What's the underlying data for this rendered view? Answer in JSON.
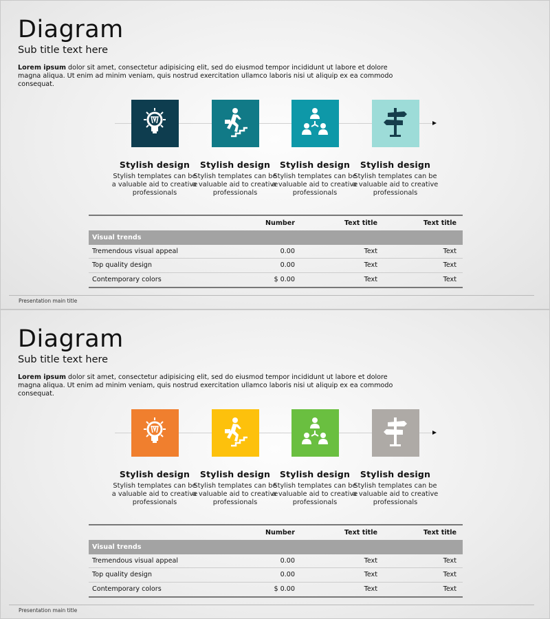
{
  "slides": [
    {
      "title": "Diagram",
      "subtitle": "Sub title text here",
      "body_bold": "Lorem ipsum",
      "body_text": " dolor sit amet, consectetur adipisicing elit, sed do eiusmod tempor incididunt ut labore et dolore magna aliqua. Ut enim ad minim veniam, quis nostrud exercitation ullamco laboris nisi ut aliquip ex ea commodo consequat.",
      "steps": [
        {
          "icon": "lightbulb-icon",
          "color": "#0e3d4f",
          "icon_color": "#ffffff",
          "heading": "Stylish design",
          "text": "Stylish templates can be a valuable aid to creative professionals"
        },
        {
          "icon": "running-up-stairs-icon",
          "color": "#117a87",
          "icon_color": "#ffffff",
          "heading": "Stylish design",
          "text": "Stylish templates can be a valuable aid to creative professionals"
        },
        {
          "icon": "team-hierarchy-icon",
          "color": "#0e98a8",
          "icon_color": "#ffffff",
          "heading": "Stylish design",
          "text": "Stylish templates can be a valuable aid to creative professionals"
        },
        {
          "icon": "signpost-icon",
          "color": "#9ddcd8",
          "icon_color": "#163e4c",
          "heading": "Stylish design",
          "text": "Stylish templates can be a valuable aid to creative professionals"
        }
      ],
      "table": {
        "headers": [
          "",
          "Number",
          "Text title",
          "Text title"
        ],
        "group": "Visual trends",
        "rows": [
          [
            "Tremendous visual appeal",
            "0.00",
            "Text",
            "Text"
          ],
          [
            "Top quality design",
            "0.00",
            "Text",
            "Text"
          ],
          [
            "Contemporary colors",
            "$ 0.00",
            "Text",
            "Text"
          ]
        ]
      },
      "footer": "Presentation main title"
    },
    {
      "title": "Diagram",
      "subtitle": "Sub title text here",
      "body_bold": "Lorem ipsum",
      "body_text": " dolor sit amet, consectetur adipisicing elit, sed do eiusmod tempor incididunt ut labore et dolore magna aliqua. Ut enim ad minim veniam, quis nostrud exercitation ullamco laboris nisi ut aliquip ex ea commodo consequat.",
      "steps": [
        {
          "icon": "lightbulb-icon",
          "color": "#f07f2e",
          "icon_color": "#ffffff",
          "heading": "Stylish design",
          "text": "Stylish templates can be a valuable aid to creative professionals"
        },
        {
          "icon": "running-up-stairs-icon",
          "color": "#fdc10c",
          "icon_color": "#ffffff",
          "heading": "Stylish design",
          "text": "Stylish templates can be a valuable aid to creative professionals"
        },
        {
          "icon": "team-hierarchy-icon",
          "color": "#6abf40",
          "icon_color": "#ffffff",
          "heading": "Stylish design",
          "text": "Stylish templates can be a valuable aid to creative professionals"
        },
        {
          "icon": "signpost-icon",
          "color": "#aeaaa6",
          "icon_color": "#ffffff",
          "heading": "Stylish design",
          "text": "Stylish templates can be a valuable aid to creative professionals"
        }
      ],
      "table": {
        "headers": [
          "",
          "Number",
          "Text title",
          "Text title"
        ],
        "group": "Visual trends",
        "rows": [
          [
            "Tremendous visual appeal",
            "0.00",
            "Text",
            "Text"
          ],
          [
            "Top quality design",
            "0.00",
            "Text",
            "Text"
          ],
          [
            "Contemporary colors",
            "$ 0.00",
            "Text",
            "Text"
          ]
        ]
      },
      "footer": "Presentation main title"
    }
  ]
}
